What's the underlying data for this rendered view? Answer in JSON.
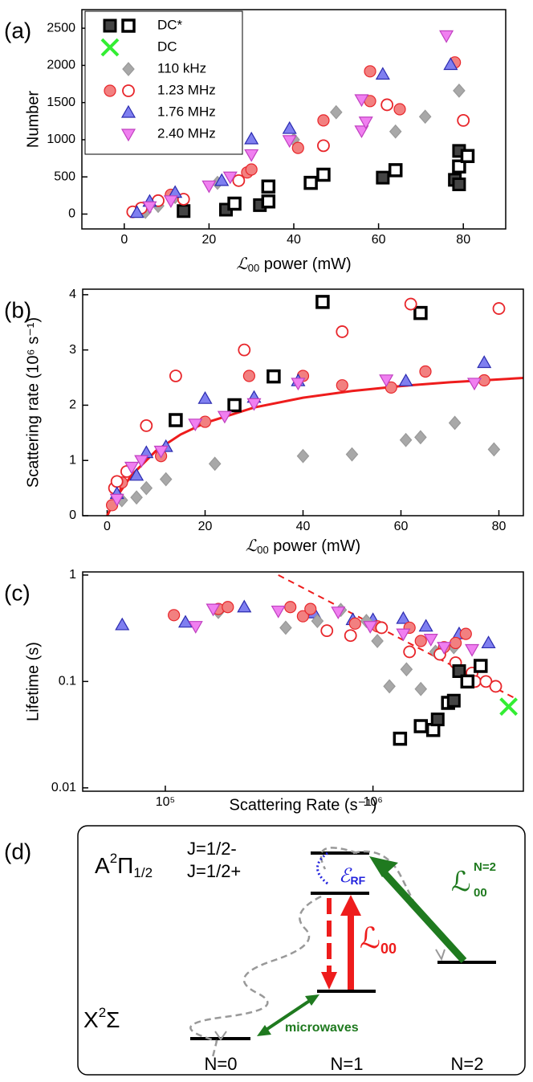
{
  "chart_data": [
    {
      "type": "scatter",
      "label": "(a)",
      "xlabel": {
        "symbol": "ℒ",
        "sub": "00",
        "text": " power (mW)"
      },
      "ylabel": "Number",
      "xlim": [
        -10,
        90
      ],
      "ylim": [
        -200,
        2750
      ],
      "xticks": [
        0,
        20,
        40,
        60,
        80
      ],
      "yticks": [
        0,
        500,
        1000,
        1500,
        2000,
        2500
      ],
      "legend": "upper left",
      "series": [
        {
          "name": "DC*",
          "marker": "square",
          "color": "#444444",
          "edgecolor": "#000000",
          "x": [
            14,
            24,
            26,
            32,
            34,
            34,
            44,
            47,
            61,
            64,
            78,
            79,
            79,
            79,
            81
          ],
          "values": [
            40,
            60,
            140,
            120,
            170,
            370,
            420,
            530,
            490,
            590,
            460,
            400,
            850,
            640,
            780
          ],
          "filled": [
            true,
            true,
            false,
            true,
            false,
            false,
            false,
            false,
            true,
            false,
            true,
            true,
            true,
            false,
            false
          ]
        },
        {
          "name": "DC",
          "marker": "x",
          "color": "#33ee33",
          "edgecolor": "#33ee33",
          "x": [],
          "values": []
        },
        {
          "name": "110 kHz",
          "marker": "diamond",
          "color": "#a8a8a8",
          "edgecolor": "#999999",
          "x": [
            5,
            8,
            12,
            22,
            40,
            50,
            64,
            71,
            79
          ],
          "values": [
            30,
            110,
            230,
            420,
            1000,
            1370,
            1110,
            1310,
            1660
          ]
        },
        {
          "name": "1.23 MHz",
          "marker": "circle",
          "color": "#f28080",
          "edgecolor": "#e8262b",
          "x": [
            2,
            4,
            8,
            11,
            14,
            27,
            29,
            30,
            41,
            47,
            47,
            58,
            58,
            62,
            65,
            78,
            80
          ],
          "values": [
            30,
            80,
            180,
            260,
            200,
            450,
            560,
            600,
            890,
            1260,
            920,
            1920,
            1520,
            1470,
            1410,
            2040,
            1260
          ],
          "filled": [
            false,
            false,
            false,
            true,
            false,
            false,
            true,
            true,
            true,
            true,
            false,
            true,
            true,
            false,
            true,
            true,
            false
          ]
        },
        {
          "name": "1.76 MHz",
          "marker": "triangle-up",
          "color": "#7f7ff0",
          "edgecolor": "#2b2bb0",
          "x": [
            3,
            6,
            12,
            23,
            30,
            39,
            61,
            77
          ],
          "values": [
            20,
            170,
            290,
            450,
            1010,
            1150,
            1880,
            2010
          ]
        },
        {
          "name": "2.40 MHz",
          "marker": "triangle-down",
          "color": "#f07ff0",
          "edgecolor": "#c040c0",
          "x": [
            6,
            11,
            20,
            25,
            30,
            39,
            56,
            56,
            57,
            76
          ],
          "values": [
            100,
            180,
            380,
            500,
            800,
            990,
            1120,
            1540,
            1240,
            2400
          ]
        }
      ]
    },
    {
      "type": "scatter",
      "label": "(b)",
      "xlabel": {
        "symbol": "ℒ",
        "sub": "00",
        "text": " power (mW)"
      },
      "ylabel": "Scattering rate (10⁶ s⁻¹)",
      "xlim": [
        -5,
        85
      ],
      "ylim": [
        0,
        4.1
      ],
      "xticks": [
        0,
        20,
        40,
        60,
        80
      ],
      "yticks": [
        0,
        1,
        2,
        3,
        4
      ],
      "series": [
        {
          "line": "solid",
          "color": "#ee1c1c",
          "x": [
            0,
            2,
            5,
            10,
            15,
            20,
            30,
            40,
            50,
            60,
            70,
            85
          ],
          "values": [
            0,
            0.347,
            0.736,
            1.177,
            1.47,
            1.679,
            1.958,
            2.135,
            2.257,
            2.347,
            2.416,
            2.493
          ]
        },
        {
          "name": "DC*",
          "marker": "square",
          "color": "#444444",
          "edgecolor": "#000000",
          "x": [
            14,
            26,
            34,
            44,
            64
          ],
          "values": [
            1.73,
            2.0,
            2.52,
            3.87,
            3.67
          ],
          "filled": [
            false,
            false,
            false,
            false,
            false
          ]
        },
        {
          "name": "110 kHz",
          "marker": "diamond",
          "color": "#a8a8a8",
          "edgecolor": "#999999",
          "x": [
            3,
            6,
            8,
            12,
            22,
            40,
            50,
            61,
            64,
            71,
            79
          ],
          "values": [
            0.28,
            0.33,
            0.5,
            0.66,
            0.94,
            1.08,
            1.11,
            1.37,
            1.42,
            1.68,
            1.2
          ]
        },
        {
          "name": "1.23 MHz",
          "marker": "circle",
          "color": "#f28080",
          "edgecolor": "#e8262b",
          "x": [
            1,
            3,
            11,
            20,
            29,
            40,
            48,
            58,
            65,
            77,
            1.5,
            2,
            4,
            8,
            14,
            28,
            48,
            62,
            80
          ],
          "values": [
            0.19,
            0.6,
            1.08,
            1.7,
            2.53,
            2.53,
            2.36,
            2.32,
            2.61,
            2.45,
            0.5,
            0.62,
            0.8,
            1.63,
            2.53,
            3.0,
            3.33,
            3.83,
            3.75
          ],
          "filled": [
            true,
            true,
            true,
            true,
            true,
            true,
            true,
            true,
            true,
            true,
            false,
            false,
            false,
            false,
            false,
            false,
            false,
            false,
            false
          ]
        },
        {
          "name": "1.76 MHz",
          "marker": "triangle-up",
          "color": "#7f7ff0",
          "edgecolor": "#2b2bb0",
          "x": [
            2,
            6,
            8,
            12,
            20,
            30,
            39,
            61,
            77
          ],
          "values": [
            0.4,
            0.73,
            1.14,
            1.25,
            2.12,
            2.14,
            2.44,
            2.44,
            2.77
          ]
        },
        {
          "name": "2.40 MHz",
          "marker": "triangle-down",
          "color": "#f07ff0",
          "edgecolor": "#c040c0",
          "x": [
            2,
            5,
            7,
            11,
            18,
            24,
            30,
            39,
            57,
            75
          ],
          "values": [
            0.3,
            0.88,
            1.0,
            1.17,
            1.66,
            1.8,
            2.03,
            2.4,
            2.46,
            2.4
          ]
        }
      ]
    },
    {
      "type": "scatter",
      "label": "(c)",
      "xscale": "log",
      "yscale": "log",
      "xlabel": "Scattering Rate (s⁻¹)",
      "ylabel": "Lifetime (s)",
      "xlim": [
        40000,
        5300000
      ],
      "ylim": [
        0.0093,
        1.07
      ],
      "xticks": [
        {
          "value": 100000,
          "label": "10⁵"
        },
        {
          "value": 1000000,
          "label": "10⁶"
        }
      ],
      "yticks": [
        0.01,
        0.1,
        1
      ],
      "series": [
        {
          "line": "dashed",
          "color": "#ee1c1c",
          "x": [
            350000,
            4800000
          ],
          "values": [
            1.0,
            0.07
          ]
        },
        {
          "name": "1.76 MHz",
          "marker": "triangle-up",
          "color": "#7f7ff0",
          "edgecolor": "#2b2bb0",
          "x": [
            62000,
            125000,
            240000,
            520000,
            800000,
            1000000,
            1400000,
            1800000,
            2600000,
            3600000
          ],
          "values": [
            0.34,
            0.36,
            0.5,
            0.44,
            0.38,
            0.38,
            0.39,
            0.33,
            0.28,
            0.23
          ]
        },
        {
          "name": "110 kHz",
          "marker": "diamond",
          "color": "#a8a8a8",
          "edgecolor": "#999999",
          "x": [
            180000,
            380000,
            540000,
            700000,
            930000,
            1050000,
            1200000,
            1450000,
            1700000,
            2000000,
            2450000
          ],
          "values": [
            0.45,
            0.32,
            0.37,
            0.47,
            0.37,
            0.24,
            0.09,
            0.13,
            0.085,
            0.19,
            0.21
          ]
        },
        {
          "name": "1.23 MHz",
          "marker": "circle",
          "color": "#f28080",
          "edgecolor": "#e8262b",
          "x": [
            110000,
            180000,
            200000,
            400000,
            460000,
            500000,
            820000,
            1050000,
            1500000,
            1700000,
            2200000,
            2500000,
            2800000,
            600000,
            780000,
            1100000,
            1500000,
            2100000,
            2500000,
            3000000,
            3100000,
            3500000,
            3900000
          ],
          "values": [
            0.42,
            0.48,
            0.5,
            0.5,
            0.41,
            0.48,
            0.35,
            0.33,
            0.32,
            0.24,
            0.21,
            0.23,
            0.28,
            0.3,
            0.27,
            0.32,
            0.19,
            0.18,
            0.15,
            0.12,
            0.1,
            0.1,
            0.09
          ],
          "filled": [
            true,
            true,
            true,
            true,
            true,
            true,
            true,
            true,
            true,
            true,
            true,
            true,
            true,
            false,
            false,
            false,
            false,
            false,
            false,
            false,
            false,
            false,
            false
          ]
        },
        {
          "name": "2.40 MHz",
          "marker": "triangle-down",
          "color": "#f07ff0",
          "edgecolor": "#c040c0",
          "x": [
            140000,
            170000,
            350000,
            680000,
            970000,
            1400000,
            1900000,
            2200000,
            3000000
          ],
          "values": [
            0.33,
            0.48,
            0.46,
            0.45,
            0.33,
            0.28,
            0.25,
            0.21,
            0.2
          ]
        },
        {
          "name": "DC*",
          "marker": "square",
          "color": "#444444",
          "edgecolor": "#000000",
          "x": [
            1350000,
            1700000,
            1950000,
            2050000,
            2300000,
            2450000,
            2600000,
            2850000,
            3300000
          ],
          "values": [
            0.029,
            0.038,
            0.035,
            0.044,
            0.063,
            0.066,
            0.125,
            0.1,
            0.14
          ],
          "filled": [
            false,
            false,
            false,
            true,
            false,
            true,
            true,
            false,
            false
          ]
        },
        {
          "name": "DC",
          "marker": "x",
          "color": "#33ee33",
          "edgecolor": "#33ee33",
          "x": [
            4500000
          ],
          "values": [
            0.058
          ]
        }
      ]
    }
  ],
  "diagram": {
    "label": "(d)",
    "upper_state": {
      "letter": "A",
      "sup": "2",
      "symbol": "Π",
      "sub": "1/2"
    },
    "lower_state": {
      "letter": "X",
      "sup": "2",
      "symbol": "Σ"
    },
    "levels": [
      "J=1/2-",
      "J=1/2+",
      "N=0",
      "N=1",
      "N=2"
    ],
    "rf": {
      "symbol": "ℰ",
      "sub": "RF"
    },
    "pump": {
      "symbol": "ℒ",
      "sub": "00"
    },
    "repump": {
      "symbol": "ℒ",
      "sup": "N=2",
      "sub": "00"
    },
    "microwaves": "microwaves"
  }
}
